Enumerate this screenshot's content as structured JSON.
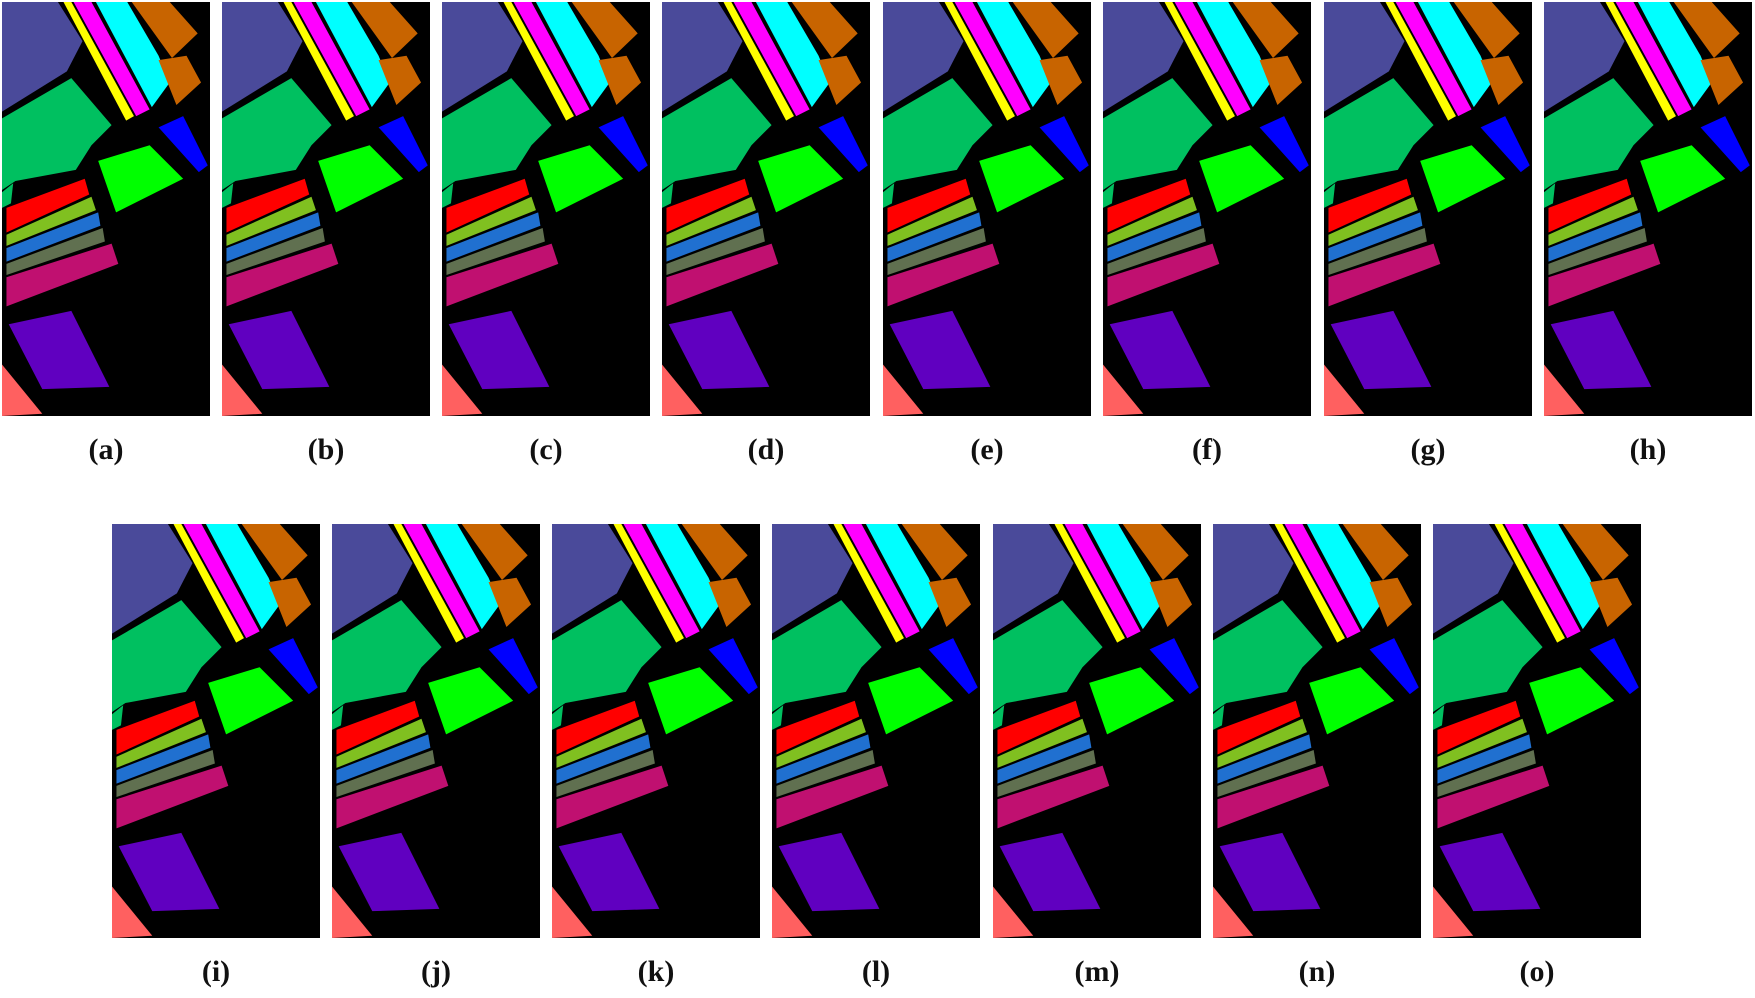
{
  "labels": [
    "(a)",
    "(b)",
    "(c)",
    "(d)",
    "(e)",
    "(f)",
    "(g)",
    "(h)",
    "(i)",
    "(j)",
    "(k)",
    "(l)",
    "(m)",
    "(n)",
    "(o)"
  ]
}
